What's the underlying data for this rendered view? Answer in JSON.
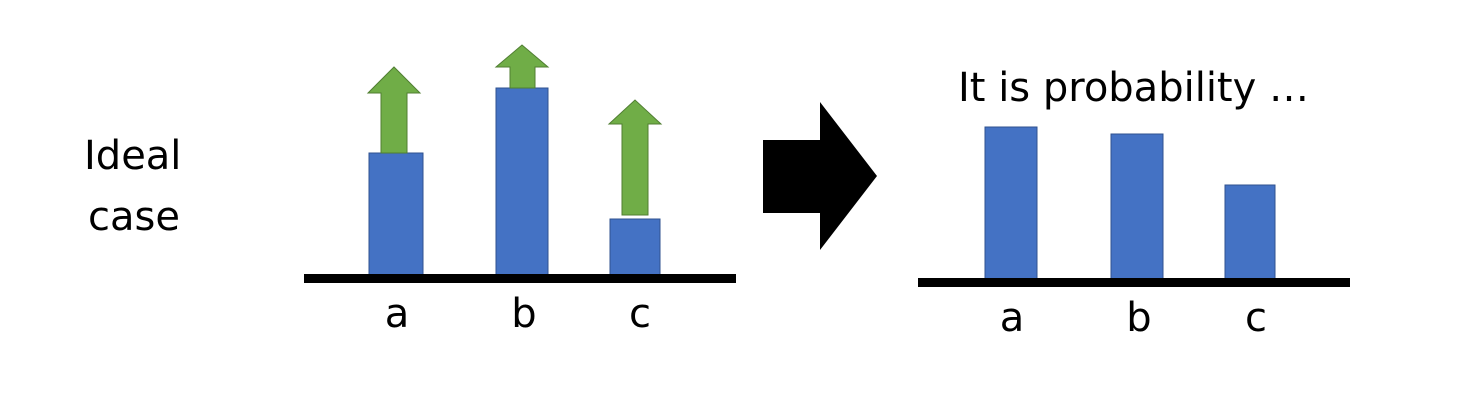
{
  "left_label": {
    "line1": "Ideal case",
    "line1a": "Ideal",
    "line1b": "case"
  },
  "left_chart": {
    "categories": [
      "a",
      "b",
      "c"
    ],
    "bar_color": "#4472C4",
    "arrow_color": "#70AD47"
  },
  "transition_arrow": {
    "icon": "right-arrow",
    "color": "#000000"
  },
  "right_chart": {
    "title": "It is probability …",
    "categories": [
      "a",
      "b",
      "c"
    ],
    "bar_color": "#4472C4"
  }
}
